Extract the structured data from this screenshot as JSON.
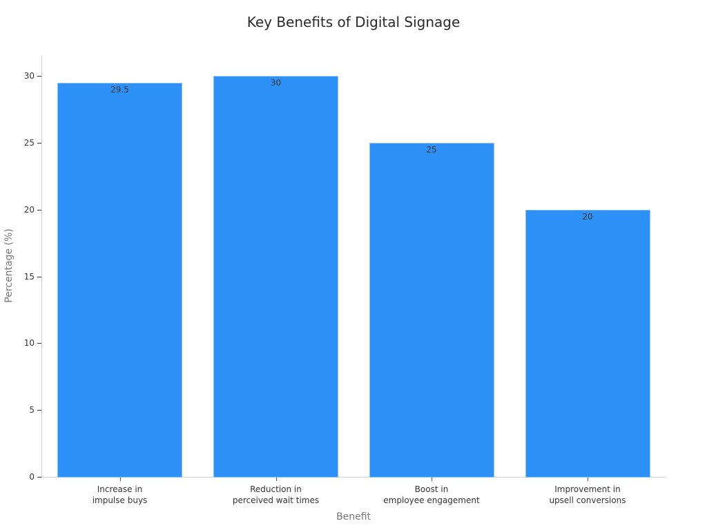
{
  "chart_data": {
    "type": "bar",
    "title": "Key Benefits of Digital Signage",
    "xlabel": "Benefit",
    "ylabel": "Percentage (%)",
    "categories": [
      [
        "Increase in",
        "impulse buys"
      ],
      [
        "Reduction in",
        "perceived wait times"
      ],
      [
        "Boost in",
        "employee engagement"
      ],
      [
        "Improvement in",
        "upsell conversions"
      ]
    ],
    "values": [
      29.5,
      30,
      25,
      20
    ],
    "value_labels": [
      "29.5",
      "30",
      "25",
      "20"
    ],
    "ylim": [
      0,
      31.5
    ],
    "yticks": [
      0,
      5,
      10,
      15,
      20,
      25,
      30
    ],
    "grid": false,
    "legend": null,
    "bar_color": "#2e91f7"
  }
}
